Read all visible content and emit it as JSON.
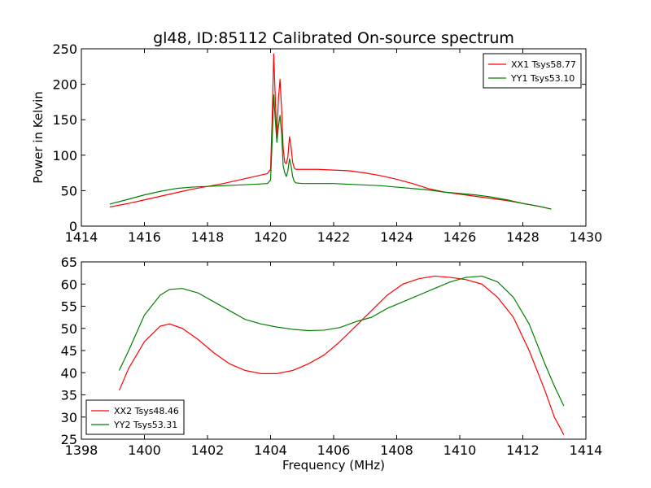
{
  "figure": {
    "title": "gl48, ID:85112 Calibrated On-source spectrum"
  },
  "chart_data": [
    {
      "type": "line",
      "title": "gl48, ID:85112 Calibrated On-source spectrum",
      "xlabel": "",
      "ylabel": "Power in Kelvin",
      "xlim": [
        1414,
        1430
      ],
      "ylim": [
        0,
        250
      ],
      "xticks": [
        1414,
        1416,
        1418,
        1420,
        1422,
        1424,
        1426,
        1428,
        1430
      ],
      "yticks": [
        0,
        50,
        100,
        150,
        200,
        250
      ],
      "grid": false,
      "legend_position": "top-right",
      "series": [
        {
          "name": "XX1 Tsys58.77",
          "color": "#ff0000",
          "x": [
            1414.9,
            1415.5,
            1416.0,
            1416.5,
            1417.0,
            1417.5,
            1418.0,
            1418.5,
            1419.0,
            1419.5,
            1419.9,
            1420.0,
            1420.05,
            1420.1,
            1420.15,
            1420.2,
            1420.25,
            1420.3,
            1420.35,
            1420.4,
            1420.45,
            1420.5,
            1420.55,
            1420.6,
            1420.65,
            1420.7,
            1420.75,
            1420.8,
            1421.0,
            1421.5,
            1422.0,
            1422.5,
            1423.0,
            1423.5,
            1424.0,
            1424.5,
            1425.0,
            1425.5,
            1426.0,
            1426.5,
            1427.0,
            1427.5,
            1428.0,
            1428.5,
            1428.9
          ],
          "y": [
            27,
            32,
            37,
            42,
            47,
            52,
            56,
            60,
            65,
            70,
            74,
            80,
            150,
            243,
            180,
            125,
            180,
            207,
            165,
            110,
            90,
            88,
            98,
            126,
            112,
            90,
            82,
            80,
            80,
            80,
            79,
            78,
            75,
            71,
            66,
            60,
            53,
            48,
            45,
            42,
            39,
            36,
            32,
            28,
            24
          ]
        },
        {
          "name": "YY1 Tsys53.10",
          "color": "#008000",
          "x": [
            1414.9,
            1415.5,
            1416.0,
            1416.5,
            1417.0,
            1417.5,
            1418.0,
            1418.5,
            1419.0,
            1419.5,
            1419.9,
            1420.0,
            1420.05,
            1420.1,
            1420.15,
            1420.2,
            1420.25,
            1420.3,
            1420.35,
            1420.4,
            1420.45,
            1420.5,
            1420.55,
            1420.6,
            1420.65,
            1420.7,
            1420.75,
            1420.8,
            1421.0,
            1421.5,
            1422.0,
            1422.5,
            1423.0,
            1423.5,
            1424.0,
            1424.5,
            1425.0,
            1425.5,
            1426.0,
            1426.5,
            1427.0,
            1427.5,
            1428.0,
            1428.5,
            1428.9
          ],
          "y": [
            31,
            38,
            44,
            49,
            53,
            55,
            56,
            57,
            58,
            59,
            60,
            65,
            120,
            185,
            150,
            118,
            140,
            156,
            130,
            85,
            75,
            70,
            78,
            95,
            85,
            70,
            63,
            61,
            60,
            60,
            60,
            59,
            58,
            57,
            55,
            53,
            51,
            48,
            46,
            44,
            41,
            37,
            32,
            28,
            24
          ]
        }
      ]
    },
    {
      "type": "line",
      "title": "",
      "xlabel": "Frequency (MHz)",
      "ylabel": "",
      "xlim": [
        1398,
        1414
      ],
      "ylim": [
        25,
        65
      ],
      "xticks": [
        1398,
        1400,
        1402,
        1404,
        1406,
        1408,
        1410,
        1412,
        1414
      ],
      "yticks": [
        25,
        30,
        35,
        40,
        45,
        50,
        55,
        60,
        65
      ],
      "grid": false,
      "legend_position": "bottom-left",
      "series": [
        {
          "name": "XX2 Tsys48.46",
          "color": "#ff0000",
          "x": [
            1399.2,
            1399.5,
            1400.0,
            1400.5,
            1400.8,
            1401.2,
            1401.7,
            1402.2,
            1402.7,
            1403.2,
            1403.7,
            1404.2,
            1404.7,
            1405.2,
            1405.7,
            1406.2,
            1406.7,
            1407.2,
            1407.7,
            1408.2,
            1408.7,
            1409.2,
            1409.7,
            1410.2,
            1410.7,
            1411.2,
            1411.7,
            1412.2,
            1412.7,
            1413.0,
            1413.3
          ],
          "y": [
            36,
            41,
            47,
            50.5,
            51,
            50,
            47.5,
            44.5,
            42,
            40.5,
            39.8,
            39.8,
            40.5,
            42,
            44,
            47,
            50.5,
            54,
            57.5,
            60,
            61.2,
            61.8,
            61.5,
            61,
            60,
            57,
            52.5,
            45,
            36,
            30,
            26
          ]
        },
        {
          "name": "YY2 Tsys53.31",
          "color": "#008000",
          "x": [
            1399.2,
            1399.5,
            1400.0,
            1400.5,
            1400.8,
            1401.2,
            1401.7,
            1402.2,
            1402.7,
            1403.2,
            1403.7,
            1404.2,
            1404.7,
            1405.2,
            1405.7,
            1406.2,
            1406.7,
            1407.2,
            1407.7,
            1408.2,
            1408.7,
            1409.2,
            1409.7,
            1410.2,
            1410.7,
            1411.2,
            1411.7,
            1412.2,
            1412.7,
            1413.0,
            1413.3
          ],
          "y": [
            40.5,
            45,
            53,
            57.5,
            58.8,
            59,
            58,
            56,
            54,
            52,
            51,
            50.3,
            49.8,
            49.5,
            49.6,
            50.2,
            51.5,
            52.5,
            54.5,
            56,
            57.5,
            59,
            60.5,
            61.5,
            61.8,
            60.5,
            57,
            51,
            42,
            37,
            32.5
          ]
        }
      ]
    }
  ]
}
